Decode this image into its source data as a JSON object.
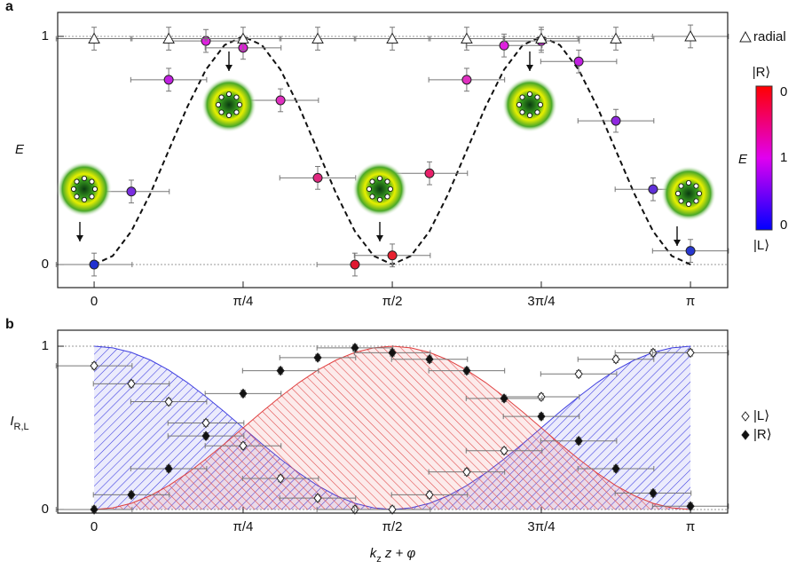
{
  "chart_data": [
    {
      "type": "scatter",
      "panel_label": "a",
      "ylabel": [
        {
          "text": "E"
        }
      ],
      "xlim": [
        -0.192,
        3.338
      ],
      "ylim": [
        -0.101,
        1.105
      ],
      "xticks": [
        0,
        {
          "value": 0.785,
          "label": "π/4"
        },
        {
          "value": 1.571,
          "label": "π/2"
        },
        {
          "value": 2.356,
          "label": "3π/4"
        },
        {
          "value": 3.142,
          "label": "π"
        }
      ],
      "yticks": [
        0,
        1
      ],
      "grid": "y",
      "curve_x": [
        0,
        0.098,
        0.196,
        0.295,
        0.393,
        0.491,
        0.589,
        0.687,
        0.785,
        0.884,
        0.982,
        1.08,
        1.178,
        1.276,
        1.374,
        1.473,
        1.571,
        1.669,
        1.767,
        1.865,
        1.963,
        2.062,
        2.16,
        2.258,
        2.356,
        2.454,
        2.553,
        2.651,
        2.749,
        2.847,
        2.945,
        3.043,
        3.142
      ],
      "curves": [
        {
          "color": "#111111",
          "dash": true,
          "values": [
            0,
            0.038,
            0.146,
            0.309,
            0.5,
            0.691,
            0.854,
            0.962,
            1,
            0.962,
            0.854,
            0.691,
            0.5,
            0.309,
            0.146,
            0.038,
            0,
            0.038,
            0.146,
            0.309,
            0.5,
            0.691,
            0.854,
            0.962,
            1,
            0.962,
            0.854,
            0.691,
            0.5,
            0.309,
            0.146,
            0.038,
            0
          ]
        }
      ],
      "series": [
        {
          "marker": "circle",
          "x": [
            0,
            0.196,
            0.393,
            0.589,
            0.785,
            0.982,
            1.178,
            1.374,
            1.571,
            1.767,
            1.963,
            2.16,
            2.356,
            2.553,
            2.749,
            2.945,
            3.142
          ],
          "values": [
            0,
            0.32,
            0.81,
            0.98,
            0.95,
            0.72,
            0.38,
            0,
            0.04,
            0.4,
            0.81,
            0.96,
            0.98,
            0.89,
            0.63,
            0.33,
            0.06
          ],
          "colors": [
            "#2030d0",
            "#7a2ee0",
            "#c020e0",
            "#e020e0",
            "#e020d8",
            "#e030c0",
            "#e02880",
            "#e01830",
            "#e82030",
            "#e8206a",
            "#e030c0",
            "#e020e0",
            "#d820e8",
            "#c020e0",
            "#9028e0",
            "#6030d8",
            "#2838d0"
          ],
          "xerr": 0.2,
          "yerr": 0.05
        },
        {
          "name": "radial",
          "marker": "triangle",
          "color": "#ffffff",
          "x": [
            0,
            0.393,
            0.785,
            1.178,
            1.571,
            1.963,
            2.356,
            2.749,
            3.142
          ],
          "values": [
            0.99,
            0.99,
            0.99,
            0.99,
            0.99,
            0.99,
            0.99,
            0.99,
            1
          ],
          "xerr": 0.2,
          "yerr": 0.05
        }
      ],
      "colorbar": {
        "title": "E",
        "top": "|R⟩",
        "bottom": "|L⟩",
        "labels": [
          "0",
          "1",
          "0"
        ]
      }
    },
    {
      "type": "scatter",
      "panel_label": "b",
      "ylabel": [
        {
          "text": "I"
        },
        {
          "text": "R,L",
          "sub": true
        }
      ],
      "xlabel": [
        {
          "text": "k"
        },
        {
          "text": "z",
          "sub": true
        },
        {
          "text": " z + φ"
        }
      ],
      "xlim": [
        -0.192,
        3.338
      ],
      "ylim": [
        -0.022,
        1.098
      ],
      "xticks": [
        0,
        {
          "value": 0.785,
          "label": "π/4"
        },
        {
          "value": 1.571,
          "label": "π/2"
        },
        {
          "value": 2.356,
          "label": "3π/4"
        },
        {
          "value": 3.142,
          "label": "π"
        }
      ],
      "yticks": [
        0,
        1
      ],
      "grid": "y",
      "curve_x": [
        0,
        0.098,
        0.196,
        0.295,
        0.393,
        0.491,
        0.589,
        0.687,
        0.785,
        0.884,
        0.982,
        1.08,
        1.178,
        1.276,
        1.374,
        1.473,
        1.571,
        1.669,
        1.767,
        1.865,
        1.963,
        2.062,
        2.16,
        2.258,
        2.356,
        2.454,
        2.553,
        2.651,
        2.749,
        2.847,
        2.945,
        3.043,
        3.142
      ],
      "curves": [
        {
          "color": "#4040e0",
          "hatch": "blue",
          "values": [
            1,
            0.99,
            0.962,
            0.916,
            0.854,
            0.778,
            0.691,
            0.598,
            0.5,
            0.402,
            0.309,
            0.222,
            0.146,
            0.084,
            0.038,
            0.01,
            0,
            0.01,
            0.038,
            0.084,
            0.146,
            0.222,
            0.309,
            0.402,
            0.5,
            0.598,
            0.691,
            0.778,
            0.854,
            0.916,
            0.962,
            0.99,
            1
          ]
        },
        {
          "color": "#e04040",
          "hatch": "red",
          "values": [
            0,
            0.01,
            0.038,
            0.084,
            0.146,
            0.222,
            0.309,
            0.402,
            0.5,
            0.598,
            0.691,
            0.778,
            0.854,
            0.916,
            0.962,
            0.99,
            1,
            0.99,
            0.962,
            0.916,
            0.854,
            0.778,
            0.691,
            0.598,
            0.5,
            0.402,
            0.309,
            0.222,
            0.146,
            0.084,
            0.038,
            0.01,
            0
          ]
        }
      ],
      "series": [
        {
          "name": "|L⟩",
          "marker": "diamond",
          "color": "#ffffff",
          "x": [
            0,
            0.196,
            0.393,
            0.589,
            0.785,
            0.982,
            1.178,
            1.374,
            1.571,
            1.767,
            1.963,
            2.16,
            2.356,
            2.553,
            2.749,
            2.945,
            3.142
          ],
          "values": [
            0.88,
            0.77,
            0.66,
            0.53,
            0.39,
            0.19,
            0.07,
            0,
            0,
            0.09,
            0.23,
            0.36,
            0.69,
            0.83,
            0.92,
            0.96,
            0.96
          ],
          "xerr": 0.2,
          "yerr": 0.02
        },
        {
          "name": "|R⟩",
          "marker": "diamond",
          "color": "#111111",
          "x": [
            0,
            0.196,
            0.393,
            0.589,
            0.785,
            0.982,
            1.178,
            1.374,
            1.571,
            1.767,
            1.963,
            2.16,
            2.356,
            2.553,
            2.749,
            2.945,
            3.142
          ],
          "values": [
            0,
            0.09,
            0.25,
            0.45,
            0.71,
            0.85,
            0.93,
            0.99,
            0.96,
            0.92,
            0.85,
            0.68,
            0.57,
            0.42,
            0.25,
            0.1,
            0.02
          ],
          "xerr": 0.2,
          "yerr": 0.02
        }
      ]
    }
  ]
}
